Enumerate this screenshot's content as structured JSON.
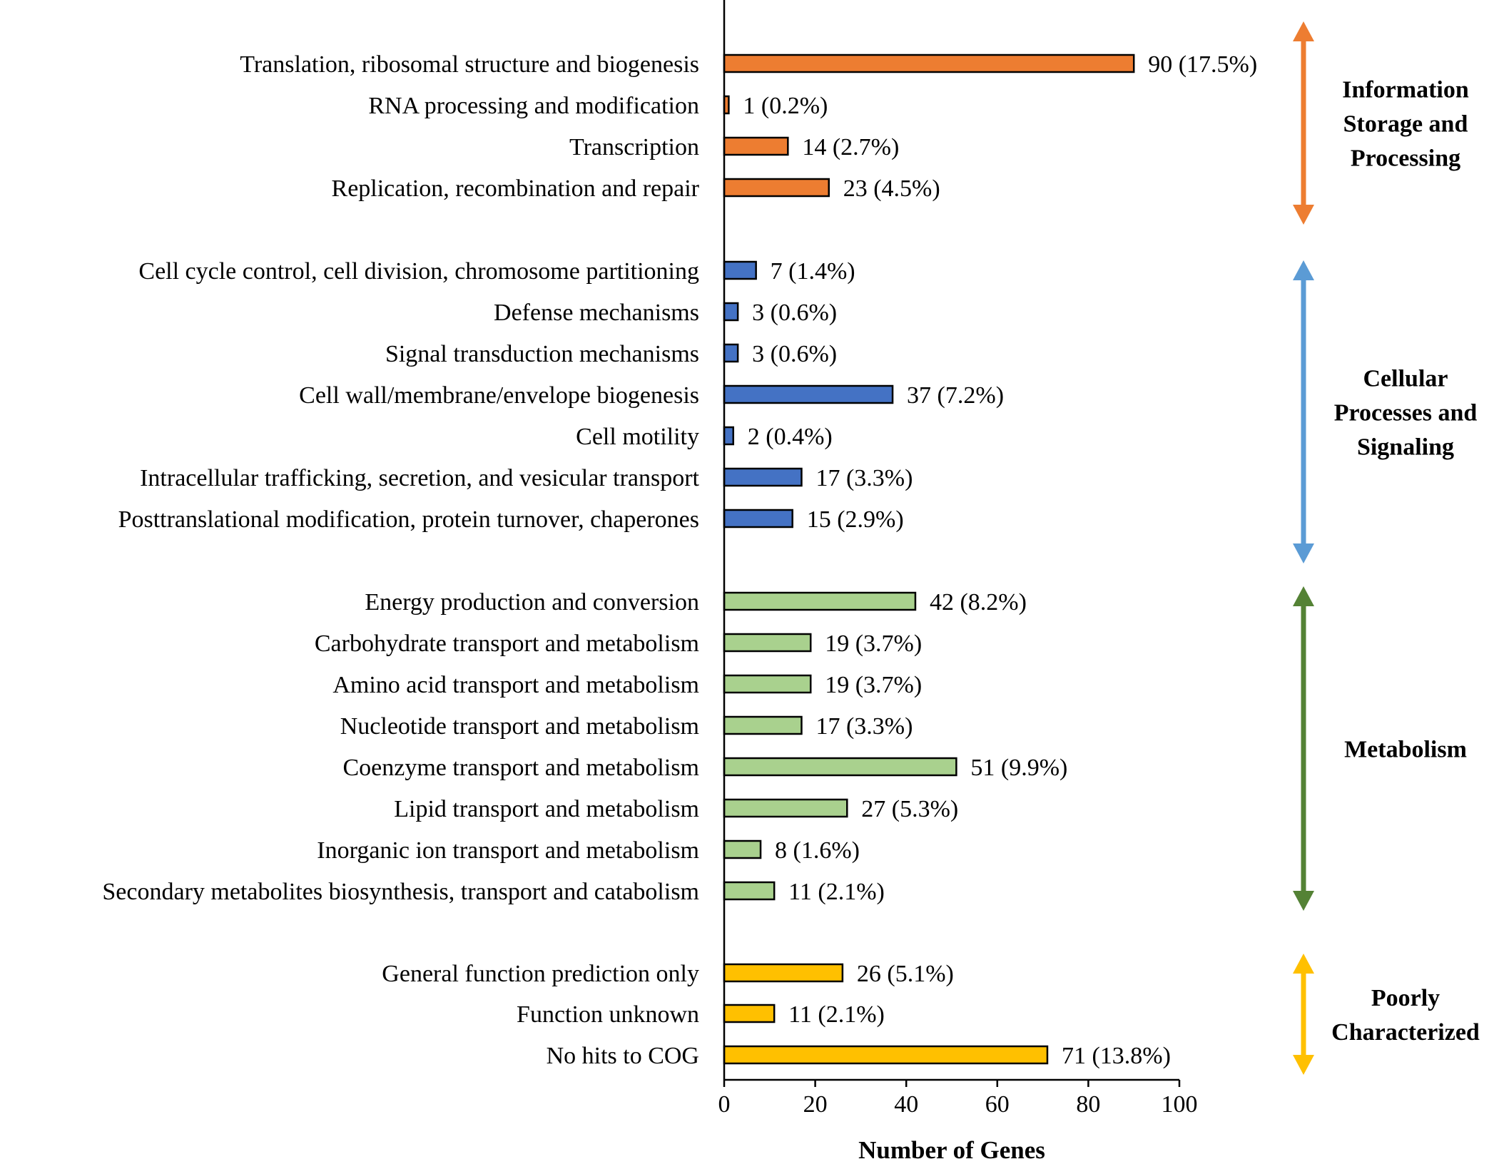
{
  "chart_data": {
    "type": "bar",
    "orientation": "horizontal",
    "xlabel": "Number of Genes",
    "xlim": [
      0,
      100
    ],
    "xticks": [
      "0",
      "20",
      "40",
      "60",
      "80",
      "100"
    ],
    "groups": [
      {
        "name": "Information Storage and Processing",
        "label_lines": [
          "Information",
          "Storage and",
          "Processing"
        ],
        "color": "#ED7D31",
        "arrow_color": "#ED7D31",
        "items": [
          {
            "category": "Translation, ribosomal structure and biogenesis",
            "value": 90,
            "label": "90 (17.5%)"
          },
          {
            "category": "RNA processing and modification",
            "value": 1,
            "label": "1 (0.2%)"
          },
          {
            "category": "Transcription",
            "value": 14,
            "label": "14 (2.7%)"
          },
          {
            "category": "Replication, recombination and repair",
            "value": 23,
            "label": "23 (4.5%)"
          }
        ]
      },
      {
        "name": "Cellular Processes and Signaling",
        "label_lines": [
          "Cellular",
          "Processes and",
          "Signaling"
        ],
        "color": "#4472C4",
        "arrow_color": "#5B9BD5",
        "items": [
          {
            "category": "Cell cycle control, cell division, chromosome partitioning",
            "value": 7,
            "label": "7 (1.4%)"
          },
          {
            "category": "Defense mechanisms",
            "value": 3,
            "label": "3 (0.6%)"
          },
          {
            "category": "Signal transduction mechanisms",
            "value": 3,
            "label": "3 (0.6%)"
          },
          {
            "category": "Cell wall/membrane/envelope biogenesis",
            "value": 37,
            "label": "37 (7.2%)"
          },
          {
            "category": "Cell motility",
            "value": 2,
            "label": "2 (0.4%)"
          },
          {
            "category": "Intracellular trafficking, secretion, and vesicular transport",
            "value": 17,
            "label": "17 (3.3%)"
          },
          {
            "category": "Posttranslational modification, protein turnover, chaperones",
            "value": 15,
            "label": "15 (2.9%)"
          }
        ]
      },
      {
        "name": "Metabolism",
        "label_lines": [
          "Metabolism"
        ],
        "color": "#A9D18E",
        "arrow_color": "#548235",
        "items": [
          {
            "category": "Energy production and conversion",
            "value": 42,
            "label": "42 (8.2%)"
          },
          {
            "category": "Carbohydrate transport and metabolism",
            "value": 19,
            "label": "19 (3.7%)"
          },
          {
            "category": "Amino acid transport and metabolism",
            "value": 19,
            "label": "19 (3.7%)"
          },
          {
            "category": "Nucleotide transport and metabolism",
            "value": 17,
            "label": "17 (3.3%)"
          },
          {
            "category": "Coenzyme transport and metabolism",
            "value": 51,
            "label": "51 (9.9%)"
          },
          {
            "category": "Lipid transport and metabolism",
            "value": 27,
            "label": "27 (5.3%)"
          },
          {
            "category": "Inorganic ion transport and metabolism",
            "value": 8,
            "label": "8 (1.6%)"
          },
          {
            "category": "Secondary metabolites biosynthesis, transport and catabolism",
            "value": 11,
            "label": "11 (2.1%)"
          }
        ]
      },
      {
        "name": "Poorly Characterized",
        "label_lines": [
          "Poorly",
          "Characterized"
        ],
        "color": "#FFC000",
        "arrow_color": "#FFC000",
        "items": [
          {
            "category": "General function prediction only",
            "value": 26,
            "label": "26 (5.1%)"
          },
          {
            "category": "Function unknown",
            "value": 11,
            "label": "11 (2.1%)"
          },
          {
            "category": "No hits to COG",
            "value": 71,
            "label": "71 (13.8%)"
          }
        ]
      }
    ]
  }
}
